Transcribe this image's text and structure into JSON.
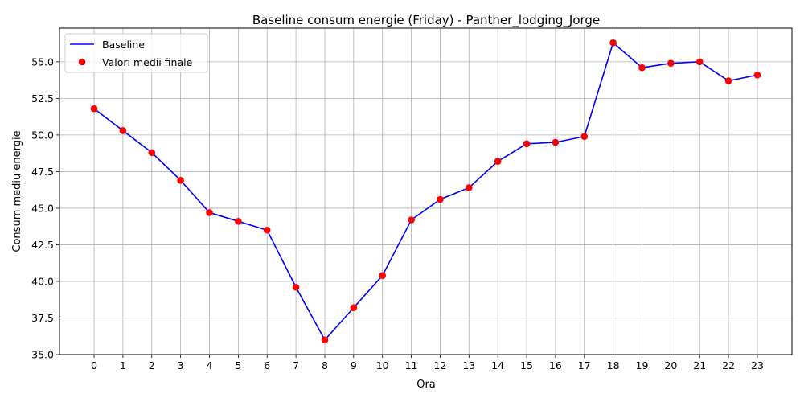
{
  "chart_data": {
    "type": "line",
    "title": "Baseline consum energie (Friday) - Panther_lodging_Jorge",
    "xlabel": "Ora",
    "ylabel": "Consum mediu energie",
    "x": [
      0,
      1,
      2,
      3,
      4,
      5,
      6,
      7,
      8,
      9,
      10,
      11,
      12,
      13,
      14,
      15,
      16,
      17,
      18,
      19,
      20,
      21,
      22,
      23
    ],
    "x_ticks": [
      "0",
      "1",
      "2",
      "3",
      "4",
      "5",
      "6",
      "7",
      "8",
      "9",
      "10",
      "11",
      "12",
      "13",
      "14",
      "15",
      "16",
      "17",
      "18",
      "19",
      "20",
      "21",
      "22",
      "23"
    ],
    "xlim": [
      -1.2,
      24.2
    ],
    "ylim": [
      35.0,
      57.3
    ],
    "y_ticks": [
      "35.0",
      "37.5",
      "40.0",
      "42.5",
      "45.0",
      "47.5",
      "50.0",
      "52.5",
      "55.0"
    ],
    "y_tick_values": [
      35.0,
      37.5,
      40.0,
      42.5,
      45.0,
      47.5,
      50.0,
      52.5,
      55.0
    ],
    "grid": true,
    "legend_position": "top-left",
    "series": [
      {
        "name": "Baseline",
        "kind": "line",
        "color": "#0000ff",
        "values": [
          51.8,
          50.3,
          48.8,
          46.9,
          44.7,
          44.1,
          43.5,
          39.6,
          36.0,
          38.2,
          40.4,
          44.2,
          45.6,
          46.4,
          48.2,
          49.4,
          49.5,
          49.9,
          56.3,
          54.6,
          54.9,
          55.0,
          53.7,
          54.1
        ]
      },
      {
        "name": "Valori medii finale",
        "kind": "scatter",
        "color": "#ff0000",
        "values": [
          51.8,
          50.3,
          48.8,
          46.9,
          44.7,
          44.1,
          43.5,
          39.6,
          36.0,
          38.2,
          40.4,
          44.2,
          45.6,
          46.4,
          48.2,
          49.4,
          49.5,
          49.9,
          56.3,
          54.6,
          54.9,
          55.0,
          53.7,
          54.1
        ]
      }
    ]
  }
}
